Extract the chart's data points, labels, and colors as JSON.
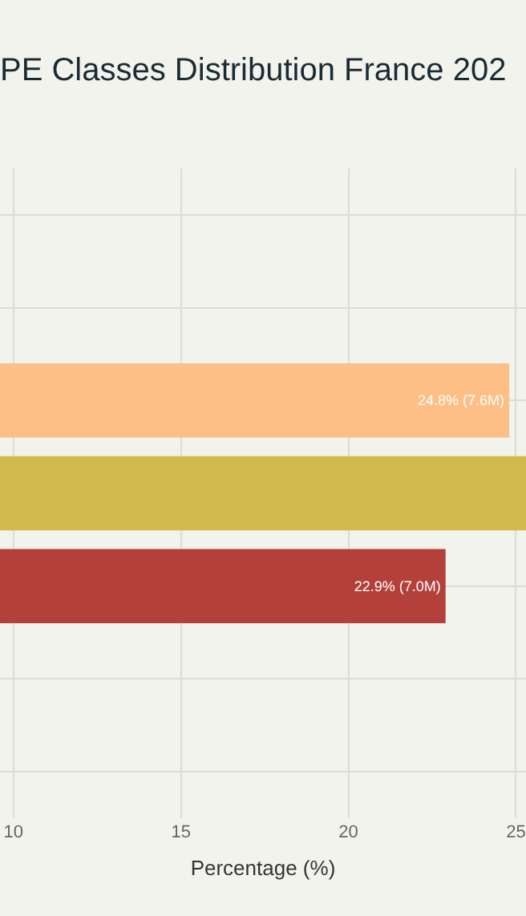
{
  "chart_data": {
    "type": "bar",
    "orientation": "horizontal",
    "title": "PE Classes Distribution France 202",
    "xlabel": "Percentage (%)",
    "categories": [
      null,
      null,
      null,
      null,
      null,
      null,
      null
    ],
    "values": [
      null,
      null,
      24.8,
      25.3,
      22.9,
      null,
      null
    ],
    "colors": [
      "#cccccc",
      "#cccccc",
      "#fdbf86",
      "#d1b94b",
      "#b4403b",
      "#cccccc",
      "#cccccc"
    ],
    "value_labels": [
      null,
      null,
      "24.8% (7.6M)",
      null,
      "22.9% (7.0M)",
      null,
      null
    ],
    "xlim": [
      9.6,
      25.3
    ],
    "xticks": [
      10,
      15,
      20,
      25
    ],
    "grid": true
  }
}
